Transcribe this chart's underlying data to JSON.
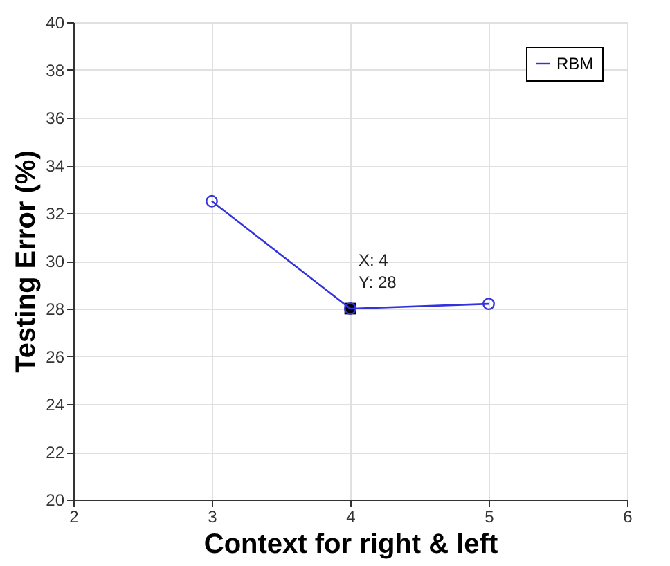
{
  "chart_data": {
    "type": "line",
    "xlabel": "Context for right & left",
    "ylabel": "Testing Error (%)",
    "x": [
      3,
      4,
      5
    ],
    "series": [
      {
        "name": "RBM",
        "color": "#3333dd",
        "values": [
          32.5,
          28,
          28.2
        ]
      }
    ],
    "xlim": [
      2,
      6
    ],
    "xticks": [
      2,
      3,
      4,
      5,
      6
    ],
    "ylim": [
      20,
      40
    ],
    "yticks": [
      20,
      22,
      24,
      26,
      28,
      30,
      32,
      34,
      36,
      38,
      40
    ],
    "grid": true,
    "legend": "top right",
    "marker": "circle",
    "line_style": "solid",
    "annotations": [
      {
        "text": "X: 4\nY: 28",
        "x": 4,
        "y": 28
      }
    ]
  }
}
